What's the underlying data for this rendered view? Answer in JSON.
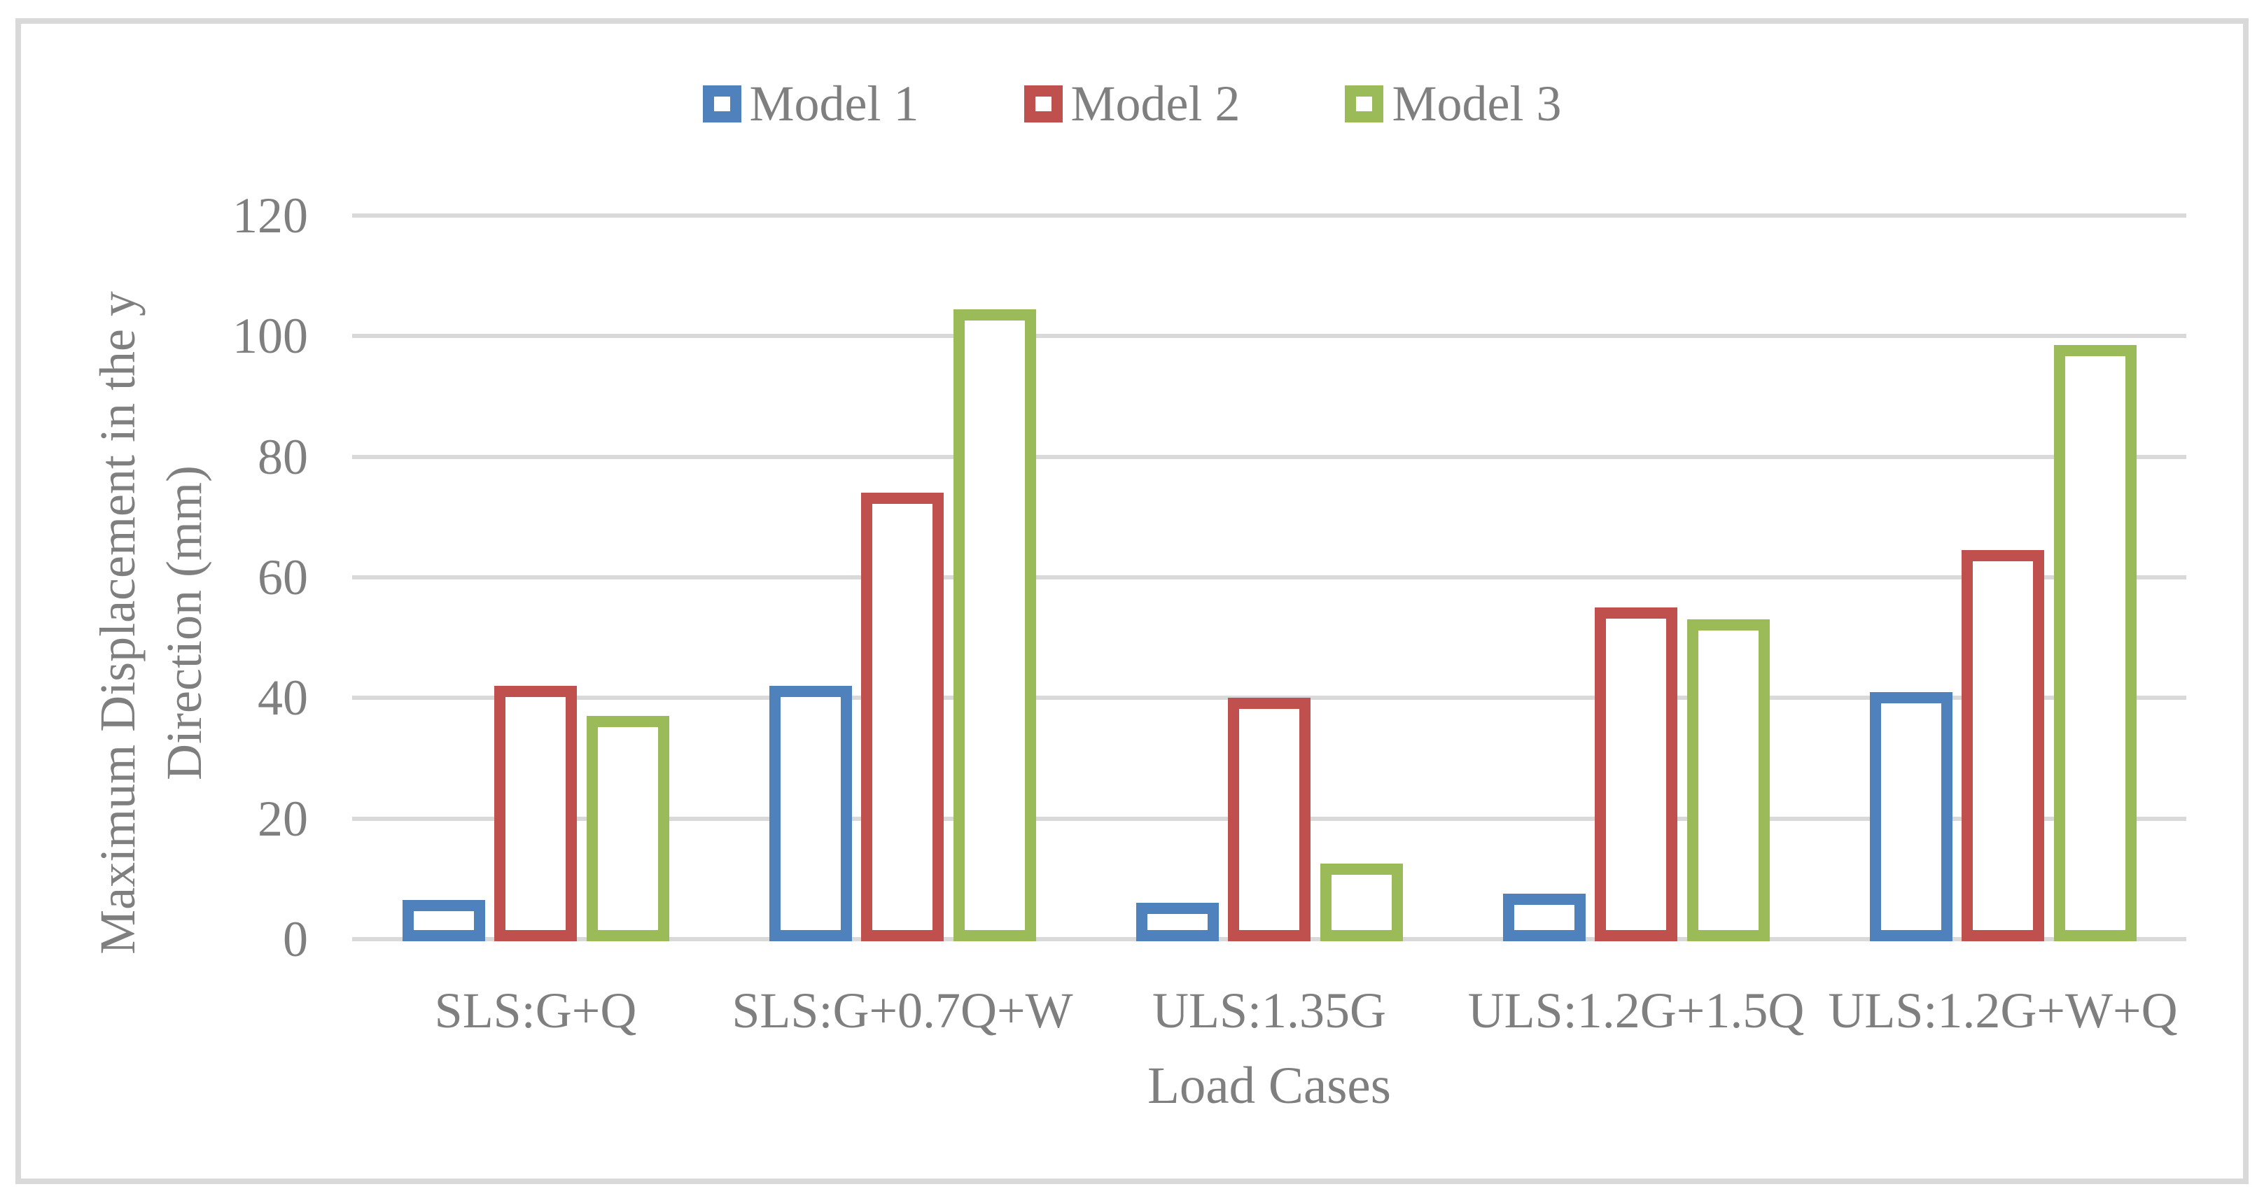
{
  "chart_data": {
    "type": "bar",
    "bar_style": "hollow-outline",
    "categories": [
      "SLS:G+Q",
      "SLS:G+0.7Q+W",
      "ULS:1.35G",
      "ULS:1.2G+1.5Q",
      "ULS:1.2G+W+Q"
    ],
    "series": [
      {
        "name": "Model 1",
        "color": "#4F81BD",
        "values": [
          6.5,
          42,
          6,
          7.5,
          41
        ]
      },
      {
        "name": "Model 2",
        "color": "#C0504D",
        "values": [
          42,
          74,
          40,
          55,
          64.5
        ]
      },
      {
        "name": "Model 3",
        "color": "#9BBB59",
        "values": [
          37,
          104.5,
          12.5,
          53,
          98.5
        ]
      }
    ],
    "title": "",
    "xlabel": "Load Cases",
    "ylabel": "Maximum Displacement in the y\nDirection (mm)",
    "ylim": [
      0,
      120
    ],
    "y_ticks": [
      0,
      20,
      40,
      60,
      80,
      100,
      120
    ],
    "grid": true,
    "gridline_color": "#D9D9D9",
    "frame_color": "#D9D9D9",
    "text_color": "#7F7F7F",
    "legend_position": "top"
  }
}
